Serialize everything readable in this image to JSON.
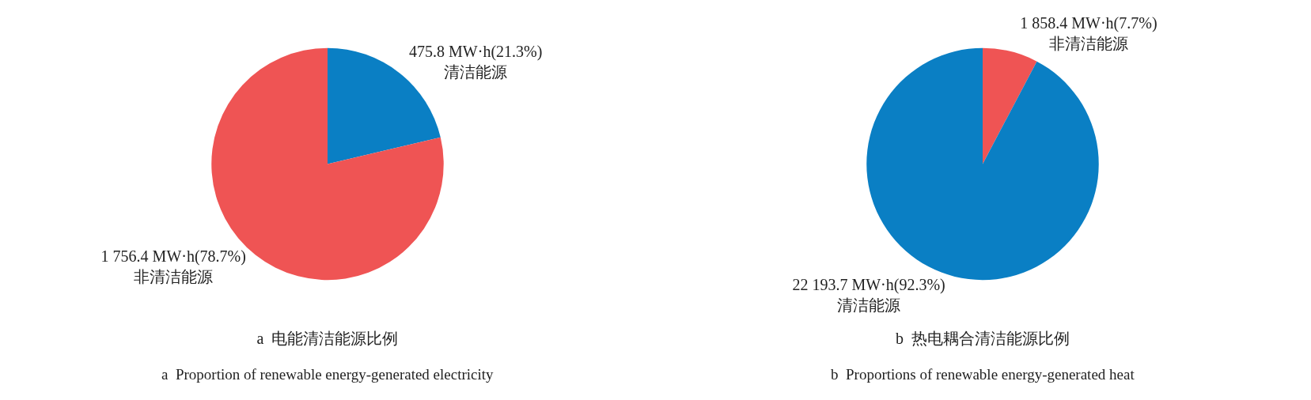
{
  "chart_data": [
    {
      "type": "pie",
      "title": "a  电能清洁能源比例",
      "subtitle": "a  Proportion of renewable energy-generated electricity",
      "categories": [
        "清洁能源",
        "非清洁能源"
      ],
      "values": [
        475.8,
        1756.4
      ],
      "colors": [
        "#0a7fc4",
        "#ef5454"
      ],
      "value_labels": [
        "475.8 MW·h(21.3%)",
        "1 756.4 MW·h(78.7%)"
      ],
      "legend": false
    },
    {
      "type": "pie",
      "title": "b  热电耦合清洁能源比例",
      "subtitle": "b  Proportions of renewable energy-generated heat",
      "categories": [
        "非清洁能源",
        "清洁能源"
      ],
      "values": [
        1858.4,
        22193.7
      ],
      "colors": [
        "#ef5454",
        "#0a7fc4"
      ],
      "value_labels": [
        "1 858.4 MW·h(7.7%)",
        "22 193.7 MW·h(92.3%)"
      ],
      "legend": false
    }
  ]
}
